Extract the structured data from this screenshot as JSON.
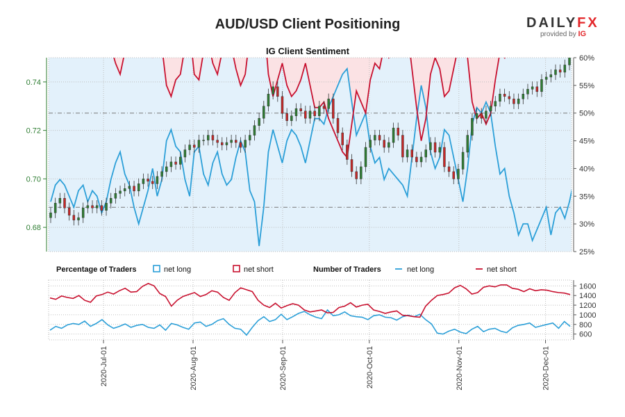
{
  "header": {
    "title": "AUD/USD Client Positioning",
    "logo_text": "DAILYFX",
    "logo_sub_prefix": "provided by",
    "logo_sub_brand": "IG"
  },
  "colors": {
    "net_long": "#2b9fd8",
    "net_short": "#c8102e",
    "bull_candle": "#2e7d32",
    "bear_candle": "#c62828",
    "long_fill": "#e3f1fb",
    "short_fill": "#fbe2e4"
  },
  "chart_data": [
    {
      "type": "candlestick+line",
      "title": "IG Client Sentiment",
      "left_axis": {
        "ticks": [
          0.68,
          0.7,
          0.72,
          0.74
        ],
        "tick_labels": [
          "0.68",
          "0.70",
          "0.72",
          "0.74"
        ],
        "range": [
          0.67,
          0.75
        ]
      },
      "right_axis": {
        "ticks": [
          25,
          30,
          35,
          40,
          45,
          50,
          55,
          60
        ],
        "tick_labels": [
          "25%",
          "30%",
          "35%",
          "40%",
          "45%",
          "50%",
          "55%",
          "60%"
        ],
        "range": [
          25,
          60
        ]
      },
      "date_range": [
        "2020-06-12",
        "2020-12-10"
      ],
      "reference_lines_pct": [
        50,
        33
      ],
      "price_close": [
        0.686,
        0.69,
        0.692,
        0.688,
        0.685,
        0.683,
        0.684,
        0.688,
        0.689,
        0.688,
        0.689,
        0.687,
        0.69,
        0.692,
        0.694,
        0.695,
        0.696,
        0.697,
        0.695,
        0.698,
        0.7,
        0.699,
        0.698,
        0.701,
        0.703,
        0.705,
        0.707,
        0.706,
        0.709,
        0.712,
        0.714,
        0.713,
        0.716,
        0.716,
        0.718,
        0.716,
        0.715,
        0.714,
        0.715,
        0.716,
        0.715,
        0.713,
        0.716,
        0.718,
        0.722,
        0.725,
        0.73,
        0.735,
        0.738,
        0.734,
        0.727,
        0.724,
        0.726,
        0.729,
        0.728,
        0.725,
        0.728,
        0.726,
        0.73,
        0.729,
        0.733,
        0.725,
        0.719,
        0.714,
        0.708,
        0.703,
        0.7,
        0.705,
        0.713,
        0.716,
        0.718,
        0.716,
        0.713,
        0.715,
        0.721,
        0.718,
        0.709,
        0.712,
        0.709,
        0.707,
        0.709,
        0.712,
        0.715,
        0.711,
        0.713,
        0.705,
        0.703,
        0.7,
        0.704,
        0.711,
        0.718,
        0.725,
        0.727,
        0.725,
        0.728,
        0.73,
        0.732,
        0.735,
        0.734,
        0.733,
        0.731,
        0.733,
        0.735,
        0.737,
        0.738,
        0.736,
        0.741,
        0.742,
        0.743,
        0.745,
        0.744,
        0.747,
        0.75
      ],
      "pct_long": [
        34,
        37,
        38,
        37,
        35,
        33,
        36,
        37,
        34,
        36,
        35,
        32,
        34,
        38,
        41,
        43,
        39,
        37,
        33,
        30,
        33,
        36,
        40,
        35,
        38,
        45,
        47,
        44,
        43,
        38,
        35,
        43,
        44,
        39,
        37,
        41,
        43,
        39,
        37,
        38,
        42,
        45,
        43,
        36,
        34,
        26,
        33,
        43,
        47,
        44,
        41,
        45,
        47,
        46,
        44,
        41,
        45,
        49,
        49,
        48,
        51,
        53,
        55,
        57,
        58,
        52,
        46,
        48,
        50,
        44,
        41,
        42,
        38,
        40,
        39,
        38,
        37,
        35,
        42,
        49,
        55,
        51,
        43,
        40,
        42,
        47,
        46,
        42,
        38,
        34,
        40,
        48,
        51,
        50,
        52,
        50,
        44,
        39,
        40,
        35,
        32,
        28,
        30,
        30,
        27,
        29,
        31,
        33,
        28,
        32,
        33,
        31,
        34,
        38,
        37
      ],
      "pct_short": [
        66,
        63,
        62,
        63,
        65,
        67,
        64,
        63,
        66,
        64,
        65,
        68,
        66,
        62,
        59,
        57,
        61,
        63,
        67,
        70,
        67,
        64,
        60,
        65,
        62,
        55,
        53,
        56,
        57,
        62,
        65,
        57,
        56,
        61,
        63,
        59,
        57,
        61,
        63,
        62,
        58,
        55,
        57,
        64,
        66,
        74,
        67,
        57,
        53,
        56,
        59,
        55,
        53,
        54,
        56,
        59,
        55,
        51,
        51,
        52,
        49,
        47,
        45,
        43,
        42,
        48,
        54,
        52,
        50,
        56,
        59,
        58,
        62,
        60,
        61,
        62,
        63,
        65,
        58,
        51,
        45,
        49,
        57,
        60,
        58,
        53,
        54,
        58,
        62,
        66,
        60,
        52,
        49,
        50,
        48,
        50,
        56,
        61,
        60,
        65,
        68,
        72,
        70,
        70,
        73,
        71,
        69,
        67,
        72,
        68,
        67,
        69,
        66,
        62,
        63
      ]
    },
    {
      "type": "line",
      "legend_percentage_title": "Percentage of Traders",
      "legend_number_title": "Number of Traders",
      "series": [
        {
          "name": "net long",
          "values": [
            680,
            760,
            720,
            790,
            820,
            800,
            870,
            760,
            820,
            900,
            790,
            720,
            760,
            810,
            740,
            780,
            800,
            740,
            720,
            790,
            680,
            820,
            790,
            740,
            700,
            830,
            850,
            760,
            800,
            880,
            920,
            800,
            720,
            700,
            580,
            740,
            880,
            960,
            860,
            900,
            1010,
            900,
            960,
            1030,
            1070,
            1000,
            950,
            920,
            1100,
            980,
            1000,
            1060,
            980,
            960,
            950,
            900,
            980,
            1000,
            950,
            940,
            890,
            960,
            990,
            960,
            1010,
            900,
            810,
            620,
            600,
            660,
            700,
            640,
            610,
            700,
            760,
            650,
            700,
            720,
            660,
            630,
            730,
            780,
            800,
            830,
            740,
            770,
            800,
            830,
            720,
            860,
            760
          ]
        },
        {
          "name": "net short",
          "values": [
            1350,
            1320,
            1390,
            1360,
            1340,
            1400,
            1300,
            1260,
            1390,
            1420,
            1470,
            1430,
            1500,
            1550,
            1470,
            1480,
            1590,
            1650,
            1600,
            1440,
            1380,
            1180,
            1300,
            1380,
            1420,
            1460,
            1380,
            1420,
            1500,
            1470,
            1360,
            1300,
            1460,
            1560,
            1520,
            1480,
            1300,
            1200,
            1150,
            1240,
            1140,
            1190,
            1230,
            1200,
            1100,
            1060,
            1080,
            1100,
            1040,
            1050,
            1150,
            1180,
            1250,
            1160,
            1200,
            1220,
            1100,
            1070,
            1030,
            1060,
            1080,
            990,
            980,
            960,
            950,
            1180,
            1300,
            1400,
            1420,
            1450,
            1560,
            1610,
            1540,
            1430,
            1460,
            1570,
            1600,
            1580,
            1620,
            1620,
            1550,
            1530,
            1480,
            1540,
            1500,
            1520,
            1510,
            1480,
            1460,
            1450,
            1420
          ]
        }
      ],
      "right_axis": {
        "ticks": [
          600,
          800,
          1000,
          1200,
          1400,
          1600
        ],
        "tick_labels": [
          "600",
          "800",
          "1000",
          "1200",
          "1400",
          "1600"
        ],
        "range": [
          480,
          1720
        ]
      }
    }
  ],
  "x_axis": {
    "tick_labels": [
      "2020-Jul-01",
      "2020-Aug-01",
      "2020-Sep-01",
      "2020-Oct-01",
      "2020-Nov-01",
      "2020-Dec-01"
    ],
    "tick_dates": [
      "2020-07-01",
      "2020-08-01",
      "2020-09-01",
      "2020-10-01",
      "2020-11-01",
      "2020-12-01"
    ]
  },
  "legend": {
    "net_long_label": "net long",
    "net_short_label": "net short"
  }
}
